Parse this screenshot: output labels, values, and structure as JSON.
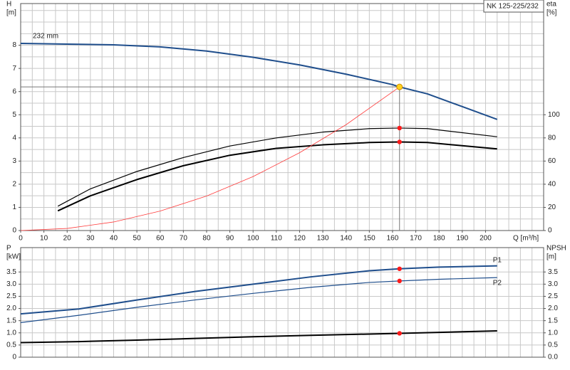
{
  "chart_data": [
    {
      "type": "line",
      "title": "NK 125-225/232",
      "ylabel": "H",
      "yunit": "[m]",
      "y2label": "eta",
      "y2unit": "[%]",
      "xlabel": "Q [m³/h]",
      "xlim": [
        0,
        225
      ],
      "xticks": [
        0,
        10,
        20,
        30,
        40,
        50,
        60,
        70,
        80,
        90,
        100,
        110,
        120,
        130,
        140,
        150,
        160,
        170,
        180,
        190,
        200
      ],
      "xgrid_step": 5,
      "ylim": [
        0,
        9.8
      ],
      "yticks": [
        0,
        1,
        2,
        3,
        4,
        5,
        6,
        7,
        8
      ],
      "ygrid_step": 0.5,
      "y2lim": [
        0,
        196
      ],
      "y2ticks": [
        0,
        20,
        40,
        60,
        80,
        100
      ],
      "series": [
        {
          "name": "232 mm",
          "color": "#1f4e8c",
          "width": 2,
          "x": [
            0,
            20,
            40,
            60,
            80,
            100,
            120,
            140,
            160,
            163,
            175,
            190,
            205
          ],
          "values": [
            8.08,
            8.05,
            8.02,
            7.93,
            7.75,
            7.48,
            7.15,
            6.75,
            6.3,
            6.2,
            5.9,
            5.35,
            4.8
          ]
        },
        {
          "color": "#000000",
          "width": 1.2,
          "axis": "y2",
          "x": [
            16,
            30,
            50,
            70,
            90,
            110,
            130,
            150,
            163,
            175,
            205
          ],
          "values": [
            21,
            36,
            51,
            63,
            73,
            80,
            85,
            88,
            88.5,
            88,
            81
          ]
        },
        {
          "color": "#000000",
          "width": 2,
          "axis": "y2",
          "x": [
            16,
            30,
            50,
            70,
            90,
            110,
            130,
            150,
            163,
            175,
            205
          ],
          "values": [
            17,
            30,
            44,
            56,
            65,
            71,
            74,
            76,
            76.5,
            76,
            70.5
          ]
        },
        {
          "color": "#ff3b3b",
          "width": 0.8,
          "x": [
            0,
            20,
            40,
            60,
            80,
            100,
            120,
            140,
            163
          ],
          "values": [
            0,
            0.09,
            0.37,
            0.84,
            1.49,
            2.33,
            3.36,
            4.57,
            6.2
          ]
        }
      ],
      "points": [
        {
          "x": 163,
          "y": 6.2,
          "color": "#ffd21f",
          "guides": true
        },
        {
          "x": 163,
          "y": 88.5,
          "color": "#ff1a1a",
          "axis": "y2"
        },
        {
          "x": 163,
          "y": 76.5,
          "color": "#ff1a1a",
          "axis": "y2"
        }
      ]
    },
    {
      "type": "line",
      "ylabel": "P",
      "yunit": "[kW]",
      "y2label": "NPSH",
      "y2unit": "[m]",
      "xlim": [
        0,
        225
      ],
      "xgrid_step": 5,
      "ylim": [
        0,
        4.5
      ],
      "yticks": [
        0,
        0.5,
        {
          "value": 1,
          "label": "1.0"
        },
        1.5,
        {
          "value": 2,
          "label": "2.0"
        },
        2.5,
        {
          "value": 3,
          "label": "3.0"
        },
        3.5
      ],
      "ygrid_step": 0.5,
      "y2lim": [
        0,
        4.5
      ],
      "y2ticks": [
        {
          "value": 0,
          "label": "0.0"
        },
        0.5,
        {
          "value": 1,
          "label": "1.0"
        },
        1.5,
        {
          "value": 2,
          "label": "2.0"
        },
        2.5,
        {
          "value": 3,
          "label": "3.0"
        },
        3.5
      ],
      "series": [
        {
          "name": "P1",
          "color": "#1f4e8c",
          "width": 2,
          "x": [
            0,
            25,
            50,
            75,
            100,
            125,
            150,
            163,
            180,
            205
          ],
          "values": [
            1.78,
            1.98,
            2.35,
            2.7,
            3.0,
            3.3,
            3.55,
            3.63,
            3.7,
            3.75
          ]
        },
        {
          "name": "P2",
          "color": "#1f4e8c",
          "width": 1.2,
          "x": [
            0,
            25,
            50,
            75,
            100,
            125,
            150,
            163,
            180,
            205
          ],
          "values": [
            1.42,
            1.72,
            2.05,
            2.35,
            2.62,
            2.87,
            3.07,
            3.13,
            3.2,
            3.27
          ]
        },
        {
          "color": "#000000",
          "width": 2,
          "axis": "y2",
          "x": [
            0,
            25,
            50,
            75,
            100,
            125,
            150,
            163,
            180,
            205
          ],
          "values": [
            0.6,
            0.64,
            0.7,
            0.77,
            0.84,
            0.9,
            0.95,
            0.98,
            1.02,
            1.08
          ]
        }
      ],
      "points": [
        {
          "x": 163,
          "y": 3.63,
          "color": "#ff1a1a"
        },
        {
          "x": 163,
          "y": 3.13,
          "color": "#ff1a1a"
        },
        {
          "x": 163,
          "y": 0.98,
          "color": "#ff1a1a",
          "axis": "y2"
        }
      ]
    }
  ]
}
